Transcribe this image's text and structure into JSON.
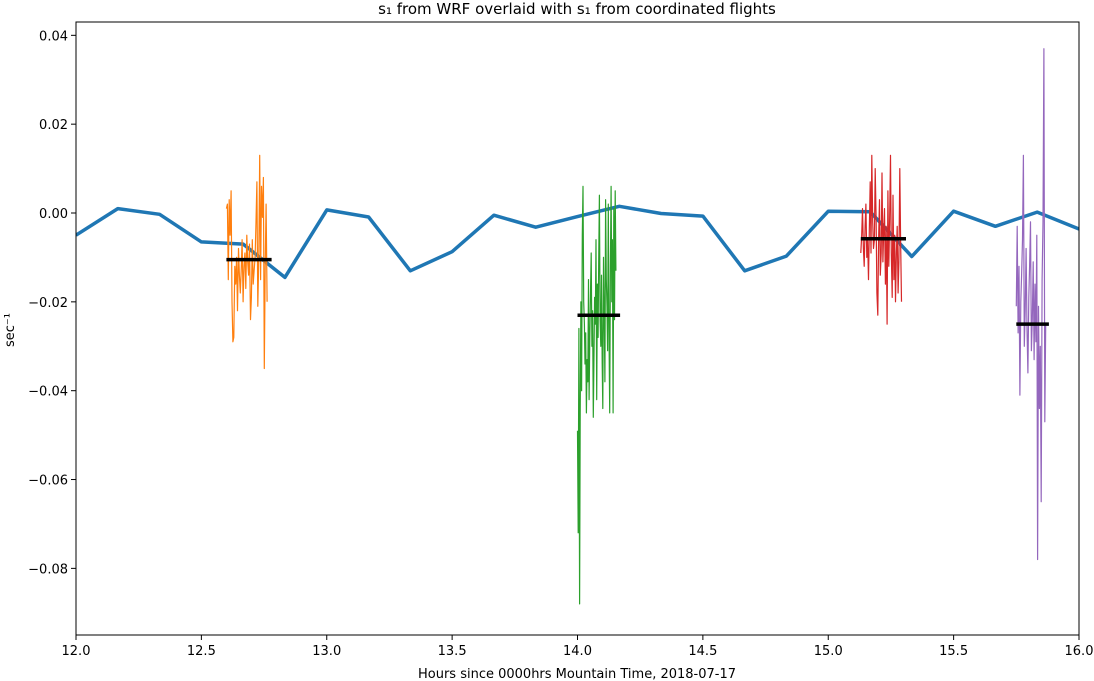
{
  "chart_data": {
    "type": "line",
    "title": "s₁ from WRF overlaid with s₁ from coordinated flights",
    "xlabel": "Hours since 0000hrs Mountain Time, 2018-07-17",
    "ylabel": "sec⁻¹",
    "xlim": [
      12.0,
      16.0
    ],
    "ylim": [
      -0.095,
      0.043
    ],
    "xticks": [
      "12.0",
      "12.5",
      "13.0",
      "13.5",
      "14.0",
      "14.5",
      "15.0",
      "15.5",
      "16.0"
    ],
    "yticks": [
      "−0.08",
      "−0.06",
      "−0.04",
      "−0.02",
      "0.00",
      "0.02",
      "0.04"
    ],
    "grid": false,
    "wrf_series": {
      "color": "#1f77b4",
      "x": [
        12.0,
        12.1667,
        12.3333,
        12.5,
        12.6667,
        12.8333,
        13.0,
        13.1667,
        13.3333,
        13.5,
        13.6667,
        13.8333,
        14.0,
        14.1667,
        14.3333,
        14.5,
        14.6667,
        14.8333,
        15.0,
        15.1667,
        15.3333,
        15.5,
        15.6667,
        15.8333,
        16.0
      ],
      "y": [
        -0.005,
        0.001,
        -0.0003,
        -0.0065,
        -0.007,
        -0.0145,
        0.0007,
        -0.0009,
        -0.013,
        -0.0087,
        -0.0005,
        -0.0032,
        -0.0008,
        0.0015,
        -0.0001,
        -0.0007,
        -0.013,
        -0.0097,
        0.0004,
        0.0003,
        -0.0098,
        0.0004,
        -0.003,
        0.0002,
        -0.0036
      ]
    },
    "flights": [
      {
        "color": "#ff7f0e",
        "x_start": 12.6,
        "x_end": 12.78,
        "mean": -0.0105,
        "y": [
          0.001,
          0.002,
          -0.015,
          0.003,
          -0.005,
          0.005,
          -0.02,
          -0.029,
          -0.028,
          -0.012,
          -0.016,
          -0.01,
          -0.022,
          -0.008,
          -0.014,
          -0.018,
          -0.013,
          -0.006,
          -0.02,
          -0.012,
          -0.009,
          -0.017,
          -0.005,
          -0.011,
          -0.014,
          -0.007,
          -0.024,
          -0.019,
          -0.006,
          -0.016,
          -0.013,
          -0.01,
          -0.002,
          0.007,
          -0.021,
          -0.01,
          0.013,
          -0.015,
          0.006,
          -0.001,
          0.008,
          -0.035,
          -0.012,
          0.002,
          -0.02
        ]
      },
      {
        "color": "#2ca02c",
        "x_start": 14.0,
        "x_end": 14.17,
        "mean": -0.023,
        "y": [
          -0.049,
          -0.072,
          -0.026,
          -0.088,
          -0.045,
          -0.02,
          -0.04,
          -0.005,
          0.006,
          -0.02,
          -0.025,
          -0.034,
          -0.027,
          -0.045,
          -0.033,
          -0.038,
          -0.015,
          -0.042,
          -0.028,
          -0.018,
          -0.009,
          -0.03,
          -0.022,
          -0.046,
          -0.034,
          -0.019,
          -0.025,
          -0.006,
          -0.042,
          -0.016,
          -0.028,
          -0.011,
          0.004,
          -0.024,
          -0.03,
          -0.014,
          -0.034,
          -0.044,
          -0.01,
          -0.022,
          -0.038,
          0.003,
          -0.015,
          -0.021,
          -0.031,
          0.002,
          -0.026,
          -0.045,
          -0.012,
          0.006,
          -0.02,
          -0.006,
          -0.045,
          0.001,
          -0.024,
          0.005,
          -0.013
        ]
      },
      {
        "color": "#d62728",
        "x_start": 15.13,
        "x_end": 15.31,
        "mean": -0.0058,
        "y": [
          -0.009,
          -0.005,
          0.001,
          -0.008,
          -0.012,
          -0.003,
          0.002,
          -0.01,
          -0.006,
          -0.015,
          -0.004,
          0.007,
          -0.009,
          0.013,
          -0.002,
          -0.008,
          -0.006,
          0.01,
          -0.001,
          -0.018,
          -0.023,
          -0.006,
          0.003,
          -0.014,
          -0.009,
          0.009,
          -0.011,
          -0.004,
          0.001,
          -0.016,
          -0.003,
          -0.025,
          0.005,
          -0.012,
          -0.002,
          0.013,
          -0.009,
          -0.019,
          0.004,
          -0.015,
          -0.005,
          -0.02,
          -0.009,
          -0.003,
          -0.018,
          -0.011,
          0.01,
          -0.006,
          -0.02
        ]
      },
      {
        "color": "#9467bd",
        "x_start": 15.75,
        "x_end": 15.88,
        "mean": -0.025,
        "y": [
          -0.021,
          -0.003,
          -0.027,
          -0.012,
          -0.041,
          -0.02,
          -0.014,
          -0.006,
          0.013,
          -0.03,
          -0.022,
          -0.008,
          -0.026,
          -0.036,
          -0.019,
          -0.012,
          -0.002,
          -0.031,
          -0.024,
          -0.011,
          -0.033,
          -0.016,
          -0.029,
          -0.005,
          -0.078,
          -0.021,
          -0.044,
          -0.03,
          -0.065,
          -0.015,
          -0.002,
          0.037,
          -0.047,
          -0.025
        ]
      }
    ]
  }
}
